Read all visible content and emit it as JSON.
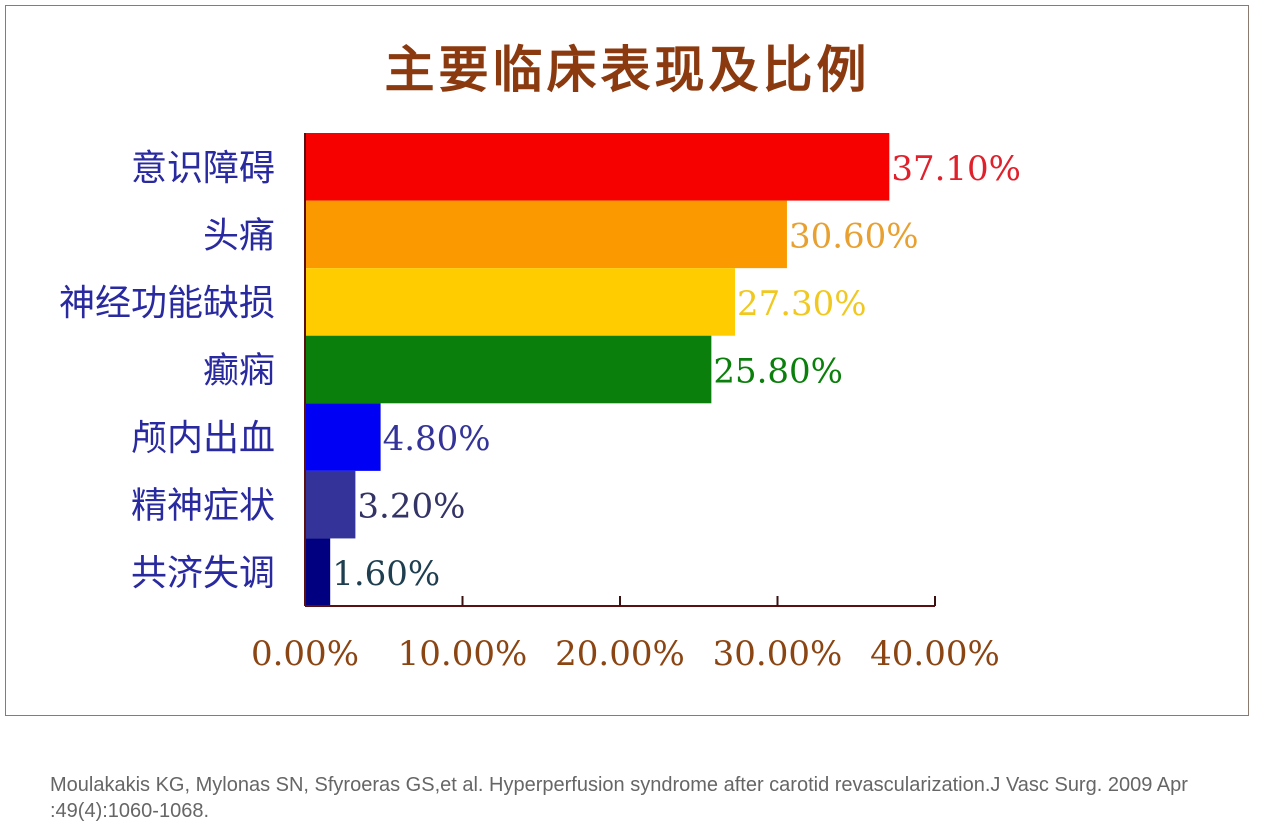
{
  "chart_data": {
    "type": "bar",
    "orientation": "horizontal",
    "title": "主要临床表现及比例",
    "categories": [
      "意识障碍",
      "头痛",
      "神经功能缺损",
      "癫痫",
      "颅内出血",
      "精神症状",
      "共济失调"
    ],
    "values": [
      37.1,
      30.6,
      27.3,
      25.8,
      4.8,
      3.2,
      1.6
    ],
    "data_labels": [
      "37.10%",
      "30.60%",
      "27.30%",
      "25.80%",
      "4.80%",
      "3.20%",
      "1.60%"
    ],
    "bar_colors": [
      "#f70000",
      "#fb9a00",
      "#ffcc00",
      "#0b7f0b",
      "#0000f5",
      "#333399",
      "#000080"
    ],
    "label_colors": [
      "#e0202a",
      "#e8a030",
      "#f0c820",
      "#0b7f0b",
      "#333399",
      "#333366",
      "#1f3f50"
    ],
    "xlim": [
      0,
      40
    ],
    "xticks": [
      "0.00%",
      "10.00%",
      "20.00%",
      "30.00%",
      "40.00%"
    ],
    "xlabel": "",
    "ylabel": "",
    "grid": false,
    "legend": "none"
  },
  "citation": "Moulakakis KG, Mylonas SN, Sfyroeras GS,et al. Hyperperfusion syndrome after carotid revascularization.J Vasc Surg. 2009 Apr :49(4):1060-1068."
}
